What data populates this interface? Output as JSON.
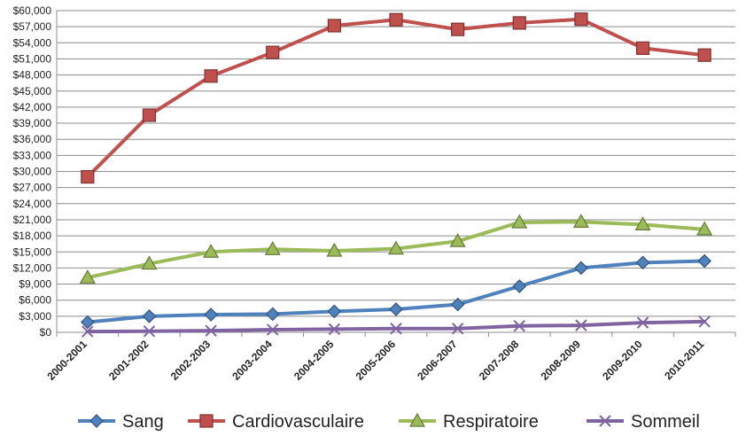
{
  "chart_data": {
    "type": "line",
    "title": "",
    "xlabel": "",
    "ylabel": "",
    "categories": [
      "2000-2001",
      "2001-2002",
      "2002-2003",
      "2003-2004",
      "2004-2005",
      "2005-2006",
      "2006-2007",
      "2007-2008",
      "2008-2009",
      "2009-2010",
      "2010-2011"
    ],
    "ylim": [
      0,
      60000
    ],
    "y_ticks": [
      0,
      3000,
      6000,
      9000,
      12000,
      15000,
      18000,
      21000,
      24000,
      27000,
      30000,
      33000,
      36000,
      39000,
      42000,
      45000,
      48000,
      51000,
      54000,
      57000,
      60000
    ],
    "y_tick_labels": [
      "$0",
      "$3,000",
      "$6,000",
      "$9,000",
      "$12,000",
      "$15,000",
      "$18,000",
      "$21,000",
      "$24,000",
      "$27,000",
      "$30,000",
      "$33,000",
      "$36,000",
      "$39,000",
      "$42,000",
      "$45,000",
      "$48,000",
      "$51,000",
      "$54,000",
      "$57,000",
      "$60,000"
    ],
    "grid": true,
    "legend_position": "bottom",
    "series": [
      {
        "name": "Sang",
        "color": "#4f81bd",
        "marker": "diamond",
        "values": [
          1900,
          3000,
          3300,
          3400,
          3900,
          4300,
          5200,
          8600,
          12000,
          13000,
          13300
        ]
      },
      {
        "name": "Cardiovasculaire",
        "color": "#c0504d",
        "marker": "square",
        "values": [
          29000,
          40500,
          47800,
          52200,
          57200,
          58300,
          56500,
          57700,
          58400,
          53000,
          51700
        ]
      },
      {
        "name": "Respiratoire",
        "color": "#9bbb59",
        "marker": "triangle",
        "values": [
          10200,
          12800,
          15000,
          15500,
          15200,
          15600,
          17000,
          20500,
          20600,
          20100,
          19200
        ]
      },
      {
        "name": "Sommeil",
        "color": "#8064a2",
        "marker": "x",
        "values": [
          150,
          200,
          300,
          500,
          600,
          700,
          700,
          1200,
          1300,
          1800,
          2000
        ]
      }
    ]
  }
}
